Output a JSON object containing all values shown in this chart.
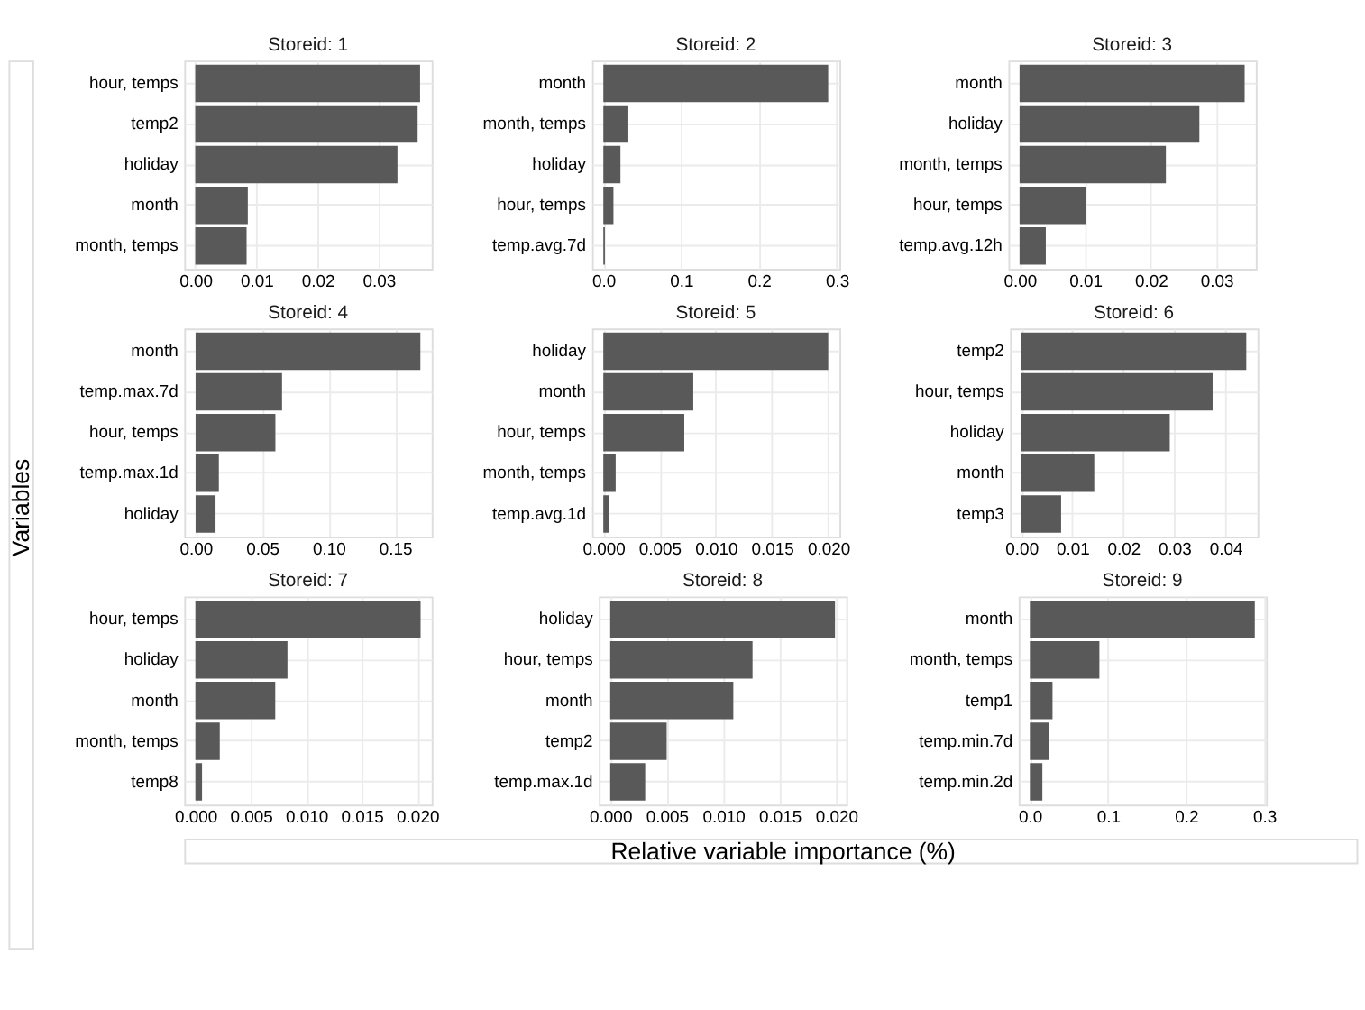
{
  "chart_data": [
    {
      "type": "bar",
      "orientation": "horizontal",
      "title": "Storeid: 1",
      "categories": [
        "hour, temps",
        "temp2",
        "holiday",
        "month",
        "month, temps"
      ],
      "values": [
        0.0368,
        0.0364,
        0.0331,
        0.0086,
        0.0084
      ],
      "color": "#595959",
      "xlim": [
        -0.0018,
        0.0387
      ],
      "xticks": [
        {
          "value": 0,
          "label": "0.00"
        },
        0.01,
        0.02,
        0.03
      ],
      "grid": true
    },
    {
      "type": "bar",
      "orientation": "horizontal",
      "title": "Storeid: 2",
      "categories": [
        "month",
        "month, temps",
        "holiday",
        "hour, temps",
        "temp.avg.7d"
      ],
      "values": [
        0.289,
        0.031,
        0.022,
        0.013,
        0.002
      ],
      "color": "#595959",
      "xlim": [
        -0.0145,
        0.3035
      ],
      "xticks": [
        {
          "value": 0,
          "label": "0.0"
        },
        0.1,
        0.2,
        0.3
      ],
      "grid": true
    },
    {
      "type": "bar",
      "orientation": "horizontal",
      "title": "Storeid: 3",
      "categories": [
        "month",
        "holiday",
        "month, temps",
        "hour, temps",
        "temp.avg.12h"
      ],
      "values": [
        0.0343,
        0.0274,
        0.0223,
        0.0101,
        0.004
      ],
      "color": "#595959",
      "xlim": [
        -0.0017,
        0.036
      ],
      "xticks": [
        {
          "value": 0,
          "label": "0.00"
        },
        0.01,
        0.02,
        0.03
      ],
      "grid": true
    },
    {
      "type": "bar",
      "orientation": "horizontal",
      "title": "Storeid: 4",
      "ylabel": "Variables",
      "categories": [
        "month",
        "temp.max.7d",
        "hour, temps",
        "temp.max.1d",
        "holiday"
      ],
      "values": [
        0.169,
        0.065,
        0.06,
        0.0175,
        0.015
      ],
      "color": "#595959",
      "xlim": [
        -0.0085,
        0.1775
      ],
      "xticks": [
        {
          "value": 0,
          "label": "0.00"
        },
        0.05,
        {
          "value": 0.1,
          "label": "0.10"
        },
        0.15
      ],
      "grid": true
    },
    {
      "type": "bar",
      "orientation": "horizontal",
      "title": "Storeid: 5",
      "categories": [
        "holiday",
        "month",
        "hour, temps",
        "month, temps",
        "temp.avg.1d"
      ],
      "values": [
        0.02,
        0.008,
        0.0072,
        0.0011,
        0.0005
      ],
      "color": "#595959",
      "xlim": [
        -0.001,
        0.021
      ],
      "xticks": [
        {
          "value": 0,
          "label": "0.000"
        },
        0.005,
        {
          "value": 0.01,
          "label": "0.010"
        },
        0.015,
        {
          "value": 0.02,
          "label": "0.020"
        }
      ],
      "grid": true
    },
    {
      "type": "bar",
      "orientation": "horizontal",
      "title": "Storeid: 6",
      "categories": [
        "temp2",
        "hour, temps",
        "holiday",
        "month",
        "temp3"
      ],
      "values": [
        0.0441,
        0.0375,
        0.0291,
        0.0143,
        0.0078
      ],
      "color": "#595959",
      "xlim": [
        -0.0022,
        0.0463
      ],
      "xticks": [
        {
          "value": 0,
          "label": "0.00"
        },
        0.01,
        0.02,
        0.03,
        0.04
      ],
      "grid": true
    },
    {
      "type": "bar",
      "orientation": "horizontal",
      "title": "Storeid: 7",
      "categories": [
        "hour, temps",
        "holiday",
        "month",
        "month, temps",
        "temp8"
      ],
      "values": [
        0.0203,
        0.0083,
        0.0072,
        0.0022,
        0.0006
      ],
      "color": "#595959",
      "xlim": [
        -0.001,
        0.0213
      ],
      "xticks": [
        {
          "value": 0,
          "label": "0.000"
        },
        0.005,
        {
          "value": 0.01,
          "label": "0.010"
        },
        0.015,
        {
          "value": 0.02,
          "label": "0.020"
        }
      ],
      "grid": true
    },
    {
      "type": "bar",
      "orientation": "horizontal",
      "title": "Storeid: 8",
      "xlabel": "Relative variable importance (%)",
      "categories": [
        "holiday",
        "hour, temps",
        "month",
        "temp2",
        "temp.max.1d"
      ],
      "values": [
        0.0199,
        0.0126,
        0.0109,
        0.005,
        0.0031
      ],
      "color": "#595959",
      "xlim": [
        -0.001,
        0.0209
      ],
      "xticks": [
        {
          "value": 0,
          "label": "0.000"
        },
        0.005,
        {
          "value": 0.01,
          "label": "0.010"
        },
        0.015,
        {
          "value": 0.02,
          "label": "0.020"
        }
      ],
      "grid": true
    },
    {
      "type": "bar",
      "orientation": "horizontal",
      "title": "Storeid: 9",
      "categories": [
        "month",
        "month, temps",
        "temp1",
        "temp.min.7d",
        "temp.min.2d"
      ],
      "values": [
        0.288,
        0.089,
        0.029,
        0.024,
        0.016
      ],
      "color": "#595959",
      "xlim": [
        -0.0144,
        0.3024
      ],
      "xticks": [
        {
          "value": 0,
          "label": "0.0"
        },
        0.1,
        0.2,
        0.3
      ],
      "grid": true
    }
  ]
}
